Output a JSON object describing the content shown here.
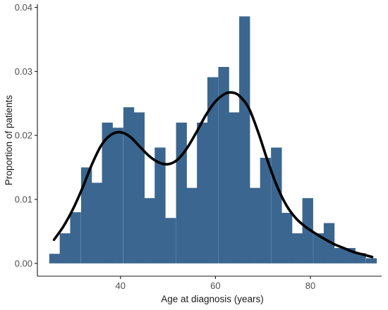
{
  "chart_data": {
    "type": "bar",
    "subtype": "histogram-with-density",
    "title": "",
    "xlabel": "Age at diagnosis (years)",
    "ylabel": "Proportion of patients",
    "xlim": [
      22.5,
      95
    ],
    "ylim": [
      -0.002,
      0.0405
    ],
    "x_ticks": [
      40,
      60,
      80
    ],
    "y_ticks": [
      0.0,
      0.01,
      0.02,
      0.03,
      0.04
    ],
    "y_tick_labels": [
      "0.00",
      "0.01",
      "0.02",
      "0.03",
      "0.04"
    ],
    "bin_width": 2.22,
    "bins": {
      "x0": [
        25.0,
        27.2,
        29.4,
        31.7,
        33.9,
        36.1,
        38.3,
        40.6,
        42.8,
        45.0,
        47.2,
        49.4,
        51.7,
        53.9,
        56.1,
        58.3,
        60.6,
        62.8,
        65.0,
        67.2,
        69.4,
        71.7,
        73.9,
        76.1,
        78.3,
        80.6,
        82.8,
        85.0,
        87.2,
        89.4,
        91.7
      ],
      "values": [
        0.0015,
        0.0047,
        0.008,
        0.015,
        0.0126,
        0.022,
        0.0212,
        0.0244,
        0.0236,
        0.0102,
        0.0181,
        0.0071,
        0.022,
        0.0118,
        0.022,
        0.0291,
        0.0307,
        0.0236,
        0.0386,
        0.0118,
        0.0165,
        0.0181,
        0.0079,
        0.0047,
        0.0102,
        0.0047,
        0.0063,
        0.0024,
        0.0024,
        0.0016,
        0.0008
      ]
    },
    "density_curve": {
      "x": [
        26,
        28,
        30,
        32,
        34,
        36,
        38,
        40,
        42,
        44,
        46,
        48,
        50,
        52,
        54,
        56,
        58,
        60,
        62,
        63.5,
        65,
        67,
        69,
        71,
        73,
        75,
        77,
        79,
        81,
        83,
        85,
        87,
        89,
        91,
        93
      ],
      "y": [
        0.0037,
        0.0058,
        0.0085,
        0.0118,
        0.0155,
        0.0185,
        0.0201,
        0.0205,
        0.0198,
        0.0183,
        0.0168,
        0.0158,
        0.0155,
        0.0162,
        0.018,
        0.0205,
        0.0232,
        0.0253,
        0.0265,
        0.0267,
        0.0262,
        0.0243,
        0.0205,
        0.016,
        0.012,
        0.009,
        0.007,
        0.0057,
        0.0047,
        0.0038,
        0.003,
        0.0024,
        0.0018,
        0.0014,
        0.001
      ]
    },
    "grid": false,
    "legend": "none"
  },
  "colors": {
    "bar_fill": "#3b668f",
    "curve": "#000000",
    "axis": "#1a1a1a",
    "tick_text": "#4d4d4d",
    "background": "#ffffff"
  }
}
